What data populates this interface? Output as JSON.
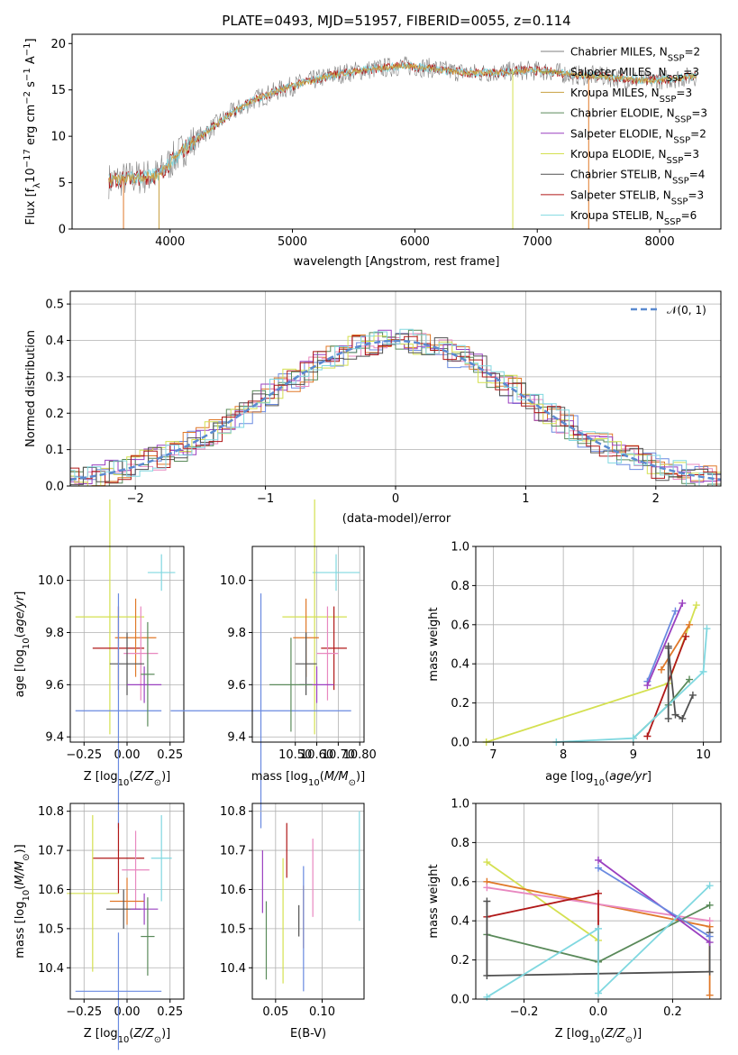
{
  "colors": [
    "#7f7f7f",
    "#8b8b3a",
    "#c8a040",
    "#5a8a5a",
    "#9a40c0",
    "#d4e050",
    "#505050",
    "#b01818",
    "#80d8e0"
  ],
  "series_colors_small": {
    "Chabrier MILES": "#6a8ae0",
    "Salpeter MILES": "#e07828",
    "Kroupa MILES": "#e888c0",
    "Chabrier ELODIE": "#5a8a5a",
    "Salpeter ELODIE": "#9a40c0",
    "Kroupa ELODIE": "#d4e050",
    "Chabrier STELIB": "#505050",
    "Salpeter STELIB": "#b01818",
    "Kroupa STELIB": "#80d8e0"
  },
  "chart_data": [
    {
      "id": "spectrum",
      "type": "line",
      "title": "PLATE=0493, MJD=51957, FIBERID=0055, z=0.114",
      "xlabel": "wavelength [Angstrom, rest frame]",
      "ylabel": "Flux [f",
      "ylabel_sub": "λ",
      "ylabel_rest": "10",
      "ylabel_sup": "−17",
      "ylabel_tail": " erg cm",
      "ylabel_sup2": "−2",
      "ylabel_tail2": " s",
      "ylabel_sup3": "−1",
      "ylabel_tail3": " A",
      "ylabel_sup4": "−1",
      "ylabel_end": "]",
      "xlim": [
        3200,
        8500
      ],
      "ylim": [
        0,
        21
      ],
      "xticks": [
        4000,
        5000,
        6000,
        7000,
        8000
      ],
      "yticks": [
        0,
        5,
        10,
        15,
        20
      ],
      "legend_position": "right",
      "legend": [
        {
          "name": "Chabrier MILES",
          "sub": "SSP",
          "n": "2"
        },
        {
          "name": "Salpeter MILES",
          "sub": "SSP",
          "n": "3"
        },
        {
          "name": "Kroupa MILES",
          "sub": "SSP",
          "n": "3"
        },
        {
          "name": "Chabrier ELODIE",
          "sub": "SSP",
          "n": "3"
        },
        {
          "name": "Salpeter ELODIE",
          "sub": "SSP",
          "n": "2"
        },
        {
          "name": "Kroupa ELODIE",
          "sub": "SSP",
          "n": "3"
        },
        {
          "name": "Chabrier STELIB",
          "sub": "SSP",
          "n": "4"
        },
        {
          "name": "Salpeter STELIB",
          "sub": "SSP",
          "n": "3"
        },
        {
          "name": "Kroupa STELIB",
          "sub": "SSP",
          "n": "6"
        }
      ],
      "legend_prefix": "N",
      "x": [
        3500,
        3700,
        3900,
        4100,
        4300,
        4500,
        4700,
        4900,
        5100,
        5300,
        5500,
        5700,
        5900,
        6100,
        6300,
        6500,
        6700,
        6900,
        7100,
        7300,
        7500,
        7700,
        7900,
        8100,
        8300
      ],
      "y": [
        5.2,
        5.5,
        5.8,
        8.5,
        10.5,
        12.5,
        14.0,
        15.0,
        15.8,
        16.5,
        17.0,
        17.3,
        17.6,
        17.4,
        17.0,
        16.8,
        16.9,
        17.1,
        17.0,
        16.6,
        16.5,
        16.2,
        16.0,
        16.2,
        16.5
      ]
    },
    {
      "id": "residuals",
      "type": "histogram",
      "xlabel": "(data-model)/error",
      "ylabel": "Normed distribution",
      "xlim": [
        -2.5,
        2.5
      ],
      "ylim": [
        0,
        0.535
      ],
      "xticks": [
        -2,
        -1,
        0,
        1,
        2
      ],
      "xtick_labels": [
        "−2",
        "−1",
        "0",
        "1",
        "2"
      ],
      "yticks": [
        0.0,
        0.1,
        0.2,
        0.3,
        0.4,
        0.5
      ],
      "ytick_labels": [
        "0.0",
        "0.1",
        "0.2",
        "0.3",
        "0.4",
        "0.5"
      ],
      "legend_label": "𝒩(0, 1)",
      "grid": true
    },
    {
      "id": "age_vs_Z",
      "type": "errorbar",
      "xlabel": "Z [log",
      "xlabel_sub": "10",
      "xlabel_rest": "(Z/Z",
      "xlabel_sub2": "⊙",
      "xlabel_end": ")]",
      "ylabel": "age  [log",
      "ylabel_sub": "10",
      "ylabel_rest": "(age/yr)]",
      "xlim": [
        -0.33,
        0.33
      ],
      "ylim": [
        9.38,
        10.13
      ],
      "xticks": [
        -0.25,
        0.0,
        0.25
      ],
      "xtick_labels": [
        "−0.25",
        "0.00",
        "0.25"
      ],
      "yticks": [
        9.4,
        9.6,
        9.8,
        10.0
      ],
      "ytick_labels": [
        "9.4",
        "9.6",
        "9.8",
        "10.0"
      ],
      "points": [
        {
          "c": "#80d8e0",
          "x": 0.2,
          "y": 10.03,
          "xe": 0.08,
          "ye": 0.07
        },
        {
          "c": "#d4e050",
          "x": -0.1,
          "y": 9.86,
          "xe": 0.2,
          "ye": 0.45
        },
        {
          "c": "#b01818",
          "x": -0.05,
          "y": 9.74,
          "xe": 0.15,
          "ye": 0.16
        },
        {
          "c": "#e07828",
          "x": 0.05,
          "y": 9.78,
          "xe": 0.12,
          "ye": 0.15
        },
        {
          "c": "#e888c0",
          "x": 0.08,
          "y": 9.72,
          "xe": 0.1,
          "ye": 0.18
        },
        {
          "c": "#505050",
          "x": 0.0,
          "y": 9.68,
          "xe": 0.1,
          "ye": 0.12
        },
        {
          "c": "#9a40c0",
          "x": 0.1,
          "y": 9.6,
          "xe": 0.1,
          "ye": 0.07
        },
        {
          "c": "#6a8ae0",
          "x": -0.05,
          "y": 9.5,
          "xe": 0.25,
          "ye": 0.45
        },
        {
          "c": "#5a8a5a",
          "x": 0.12,
          "y": 9.64,
          "xe": 0.04,
          "ye": 0.2
        }
      ]
    },
    {
      "id": "age_vs_mass",
      "type": "errorbar",
      "xlabel": "mass [log",
      "xlabel_sub": "10",
      "xlabel_rest": "(M/M",
      "xlabel_sub2": "⊙",
      "xlabel_end": ")]",
      "xlim": [
        10.3,
        10.82
      ],
      "ylim": [
        9.38,
        10.13
      ],
      "xticks": [
        10.5,
        10.6,
        10.7,
        10.8
      ],
      "xtick_labels": [
        "10.50",
        "10.60",
        "10.70",
        "10.80"
      ],
      "yticks": [
        9.4,
        9.6,
        9.8,
        10.0
      ],
      "ytick_labels": [
        "9.4",
        "9.6",
        "9.8",
        "10.0"
      ],
      "points": [
        {
          "c": "#80d8e0",
          "x": 10.69,
          "y": 10.03,
          "xe": 0.11,
          "ye": 0.07
        },
        {
          "c": "#d4e050",
          "x": 10.59,
          "y": 9.86,
          "xe": 0.15,
          "ye": 0.45
        },
        {
          "c": "#b01818",
          "x": 10.68,
          "y": 9.74,
          "xe": 0.06,
          "ye": 0.16
        },
        {
          "c": "#e07828",
          "x": 10.55,
          "y": 9.78,
          "xe": 0.06,
          "ye": 0.15
        },
        {
          "c": "#e888c0",
          "x": 10.65,
          "y": 9.72,
          "xe": 0.05,
          "ye": 0.18
        },
        {
          "c": "#505050",
          "x": 10.55,
          "y": 9.68,
          "xe": 0.05,
          "ye": 0.12
        },
        {
          "c": "#9a40c0",
          "x": 10.6,
          "y": 9.6,
          "xe": 0.08,
          "ye": 0.07
        },
        {
          "c": "#6a8ae0",
          "x": 10.34,
          "y": 9.5,
          "xe": 0.42,
          "ye": 0.45
        },
        {
          "c": "#5a8a5a",
          "x": 10.48,
          "y": 9.6,
          "xe": 0.1,
          "ye": 0.18
        }
      ]
    },
    {
      "id": "weight_vs_age",
      "type": "line",
      "xlabel": "age  [log",
      "xlabel_sub": "10",
      "xlabel_rest": "(age/yr)]",
      "ylabel": "mass weight",
      "xlim": [
        6.75,
        10.25
      ],
      "ylim": [
        0,
        1
      ],
      "xticks": [
        7,
        8,
        9,
        10
      ],
      "xtick_labels": [
        "7",
        "8",
        "9",
        "10"
      ],
      "yticks": [
        0,
        0.2,
        0.4,
        0.6,
        0.8,
        1.0
      ],
      "ytick_labels": [
        "0.0",
        "0.2",
        "0.4",
        "0.6",
        "0.8",
        "1.0"
      ],
      "grid": true,
      "series": [
        {
          "c": "#6a8ae0",
          "x": [
            9.2,
            9.6
          ],
          "y": [
            0.31,
            0.67
          ]
        },
        {
          "c": "#9a40c0",
          "x": [
            9.2,
            9.7
          ],
          "y": [
            0.29,
            0.71
          ]
        },
        {
          "c": "#d4e050",
          "x": [
            6.9,
            9.5,
            9.9
          ],
          "y": [
            0.0,
            0.3,
            0.7
          ]
        },
        {
          "c": "#e07828",
          "x": [
            9.4,
            9.8
          ],
          "y": [
            0.37,
            0.6
          ]
        },
        {
          "c": "#b01818",
          "x": [
            9.2,
            9.75
          ],
          "y": [
            0.03,
            0.54
          ]
        },
        {
          "c": "#505050",
          "x": [
            9.5,
            9.6,
            9.7,
            9.85
          ],
          "y": [
            0.48,
            0.14,
            0.12,
            0.24
          ]
        },
        {
          "c": "#5a8a5a",
          "x": [
            9.0,
            9.5,
            9.8
          ],
          "y": [
            0.02,
            0.19,
            0.32
          ]
        },
        {
          "c": "#80d8e0",
          "x": [
            7.9,
            9.0,
            10.0,
            10.05
          ],
          "y": [
            0.0,
            0.02,
            0.36,
            0.58
          ]
        },
        {
          "c": "#505050",
          "x": [
            9.5,
            9.5
          ],
          "y": [
            0.12,
            0.49
          ]
        }
      ]
    },
    {
      "id": "mass_vs_Z",
      "type": "errorbar",
      "xlabel": "Z [log",
      "xlabel_sub": "10",
      "xlabel_rest": "(Z/Z",
      "xlabel_sub2": "⊙",
      "xlabel_end": ")]",
      "ylabel": "mass [log",
      "ylabel_sub": "10",
      "ylabel_rest": "(M/M",
      "ylabel_sub2": "⊙",
      "ylabel_end": ")]",
      "xlim": [
        -0.33,
        0.33
      ],
      "ylim": [
        10.32,
        10.82
      ],
      "xticks": [
        -0.25,
        0.0,
        0.25
      ],
      "xtick_labels": [
        "−0.25",
        "0.00",
        "0.25"
      ],
      "yticks": [
        10.4,
        10.5,
        10.6,
        10.7,
        10.8
      ],
      "ytick_labels": [
        "10.4",
        "10.5",
        "10.6",
        "10.7",
        "10.8"
      ],
      "points": [
        {
          "c": "#80d8e0",
          "x": 0.2,
          "y": 10.68,
          "xe": 0.06,
          "ye": 0.11
        },
        {
          "c": "#b01818",
          "x": -0.05,
          "y": 10.68,
          "xe": 0.15,
          "ye": 0.09
        },
        {
          "c": "#e888c0",
          "x": 0.05,
          "y": 10.65,
          "xe": 0.08,
          "ye": 0.1
        },
        {
          "c": "#d4e050",
          "x": -0.2,
          "y": 10.59,
          "xe": 0.15,
          "ye": 0.2
        },
        {
          "c": "#e07828",
          "x": 0.0,
          "y": 10.57,
          "xe": 0.1,
          "ye": 0.06
        },
        {
          "c": "#505050",
          "x": -0.02,
          "y": 10.55,
          "xe": 0.1,
          "ye": 0.05
        },
        {
          "c": "#9a40c0",
          "x": 0.1,
          "y": 10.55,
          "xe": 0.08,
          "ye": 0.04
        },
        {
          "c": "#5a8a5a",
          "x": 0.12,
          "y": 10.48,
          "xe": 0.04,
          "ye": 0.1
        },
        {
          "c": "#6a8ae0",
          "x": -0.05,
          "y": 10.34,
          "xe": 0.25,
          "ye": 0.15
        }
      ]
    },
    {
      "id": "mass_vs_ebv",
      "type": "errorbar",
      "xlabel": "E(B-V)",
      "xlim": [
        0.025,
        0.145
      ],
      "ylim": [
        10.32,
        10.82
      ],
      "xticks": [
        0.05,
        0.1
      ],
      "xtick_labels": [
        "0.05",
        "0.10"
      ],
      "yticks": [
        10.4,
        10.5,
        10.6,
        10.7,
        10.8
      ],
      "ytick_labels": [
        "10.4",
        "10.5",
        "10.6",
        "10.7",
        "10.8"
      ],
      "points": [
        {
          "c": "#80d8e0",
          "x": 0.14,
          "y": 10.66,
          "xe": 0,
          "ye": 0.14
        },
        {
          "c": "#b01818",
          "x": 0.062,
          "y": 10.7,
          "xe": 0,
          "ye": 0.07
        },
        {
          "c": "#e888c0",
          "x": 0.09,
          "y": 10.63,
          "xe": 0,
          "ye": 0.1
        },
        {
          "c": "#d4e050",
          "x": 0.058,
          "y": 10.52,
          "xe": 0,
          "ye": 0.16
        },
        {
          "c": "#e07828",
          "x": 0.08,
          "y": 10.53,
          "xe": 0,
          "ye": 0.08
        },
        {
          "c": "#505050",
          "x": 0.075,
          "y": 10.52,
          "xe": 0,
          "ye": 0.04
        },
        {
          "c": "#9a40c0",
          "x": 0.036,
          "y": 10.62,
          "xe": 0,
          "ye": 0.08
        },
        {
          "c": "#5a8a5a",
          "x": 0.04,
          "y": 10.47,
          "xe": 0,
          "ye": 0.1
        },
        {
          "c": "#6a8ae0",
          "x": 0.08,
          "y": 10.5,
          "xe": 0,
          "ye": 0.16
        }
      ]
    },
    {
      "id": "weight_vs_Z",
      "type": "line",
      "xlabel": "Z [log",
      "xlabel_sub": "10",
      "xlabel_rest": "(Z/Z",
      "xlabel_sub2": "⊙",
      "xlabel_end": ")]",
      "ylabel": "mass weight",
      "xlim": [
        -0.33,
        0.33
      ],
      "ylim": [
        0,
        1
      ],
      "xticks": [
        -0.2,
        0.0,
        0.2
      ],
      "xtick_labels": [
        "−0.2",
        "0.0",
        "0.2"
      ],
      "yticks": [
        0,
        0.2,
        0.4,
        0.6,
        0.8,
        1.0
      ],
      "ytick_labels": [
        "0.0",
        "0.2",
        "0.4",
        "0.6",
        "0.8",
        "1.0"
      ],
      "grid": true,
      "series": [
        {
          "c": "#d4e050",
          "x": [
            -0.3,
            0.0
          ],
          "y": [
            0.7,
            0.3
          ]
        },
        {
          "c": "#e07828",
          "x": [
            -0.3,
            0.3,
            0.3
          ],
          "y": [
            0.6,
            0.37,
            0.02
          ]
        },
        {
          "c": "#e888c0",
          "x": [
            -0.3,
            0.3
          ],
          "y": [
            0.57,
            0.4
          ]
        },
        {
          "c": "#b01818",
          "x": [
            -0.3,
            0.0,
            0.0
          ],
          "y": [
            0.42,
            0.54,
            0.19
          ]
        },
        {
          "c": "#5a8a5a",
          "x": [
            -0.3,
            0.0,
            0.3
          ],
          "y": [
            0.33,
            0.19,
            0.48
          ]
        },
        {
          "c": "#505050",
          "x": [
            -0.3,
            -0.3,
            0.3,
            0.3
          ],
          "y": [
            0.5,
            0.12,
            0.14,
            0.34
          ]
        },
        {
          "c": "#9a40c0",
          "x": [
            0.0,
            0.3
          ],
          "y": [
            0.71,
            0.29
          ]
        },
        {
          "c": "#6a8ae0",
          "x": [
            0.0,
            0.3
          ],
          "y": [
            0.67,
            0.32
          ]
        },
        {
          "c": "#80d8e0",
          "x": [
            -0.3,
            0.0,
            0.0,
            0.3
          ],
          "y": [
            0.01,
            0.36,
            0.03,
            0.58
          ]
        }
      ]
    }
  ]
}
